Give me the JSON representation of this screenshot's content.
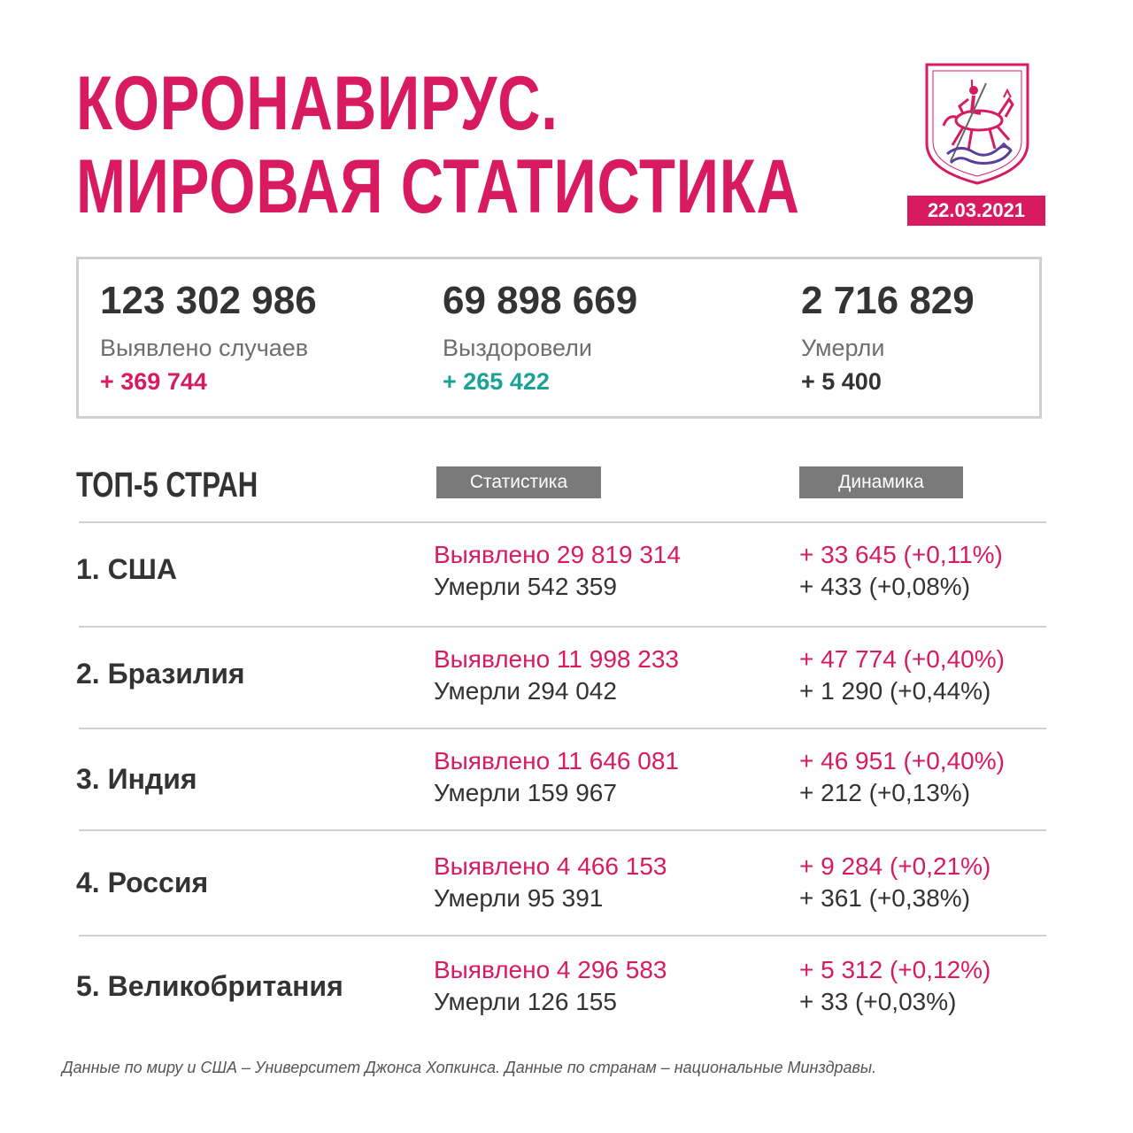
{
  "title": {
    "line1": "КОРОНАВИРУС.",
    "line2": "МИРОВАЯ СТАТИСТИКА"
  },
  "date": "22.03.2021",
  "summary": [
    {
      "value": "123 302 986",
      "label": "Выявлено случаев",
      "delta": "+ 369 744",
      "delta_color": "#d81b60"
    },
    {
      "value": "69 898 669",
      "label": "Выздоровели",
      "delta": "+ 265 422",
      "delta_color": "#1aa394"
    },
    {
      "value": "2 716 829",
      "label": "Умерли",
      "delta": "+ 5 400",
      "delta_color": "#333333"
    }
  ],
  "table": {
    "title": "ТОП-5 СТРАН",
    "col_stats": "Статистика",
    "col_dynamics": "Динамика",
    "rows": [
      {
        "country": "1. США",
        "cases": "Выявлено 29 819 314",
        "deaths": "Умерли 542 359",
        "cases_delta": "+ 33 645 (+0,11%)",
        "deaths_delta": "+ 433 (+0,08%)"
      },
      {
        "country": "2. Бразилия",
        "cases": "Выявлено 11 998 233",
        "deaths": "Умерли 294 042",
        "cases_delta": "+ 47 774 (+0,40%)",
        "deaths_delta": "+ 1 290 (+0,44%)"
      },
      {
        "country": "3. Индия",
        "cases": "Выявлено 11 646 081",
        "deaths": "Умерли 159 967",
        "cases_delta": "+ 46 951 (+0,40%)",
        "deaths_delta": "+ 212 (+0,13%)"
      },
      {
        "country": "4. Россия",
        "cases": "Выявлено 4 466 153",
        "deaths": "Умерли 95 391",
        "cases_delta": "+ 9 284 (+0,21%)",
        "deaths_delta": "+ 361 (+0,38%)"
      },
      {
        "country": "5. Великобритания",
        "cases": "Выявлено 4 296 583",
        "deaths": "Умерли 126 155",
        "cases_delta": "+ 5 312 (+0,12%)",
        "deaths_delta": "+ 33 (+0,03%)"
      }
    ]
  },
  "footnote": "Данные по миру и США – Университет Джонса Хопкинса. Данные по странам – национальные Минздравы.",
  "colors": {
    "accent": "#d81b60",
    "recovered": "#1aa394",
    "text": "#333333",
    "header_gray": "#7a7a7a"
  },
  "icons": {
    "emblem": "moscow-coat-of-arms-icon"
  }
}
